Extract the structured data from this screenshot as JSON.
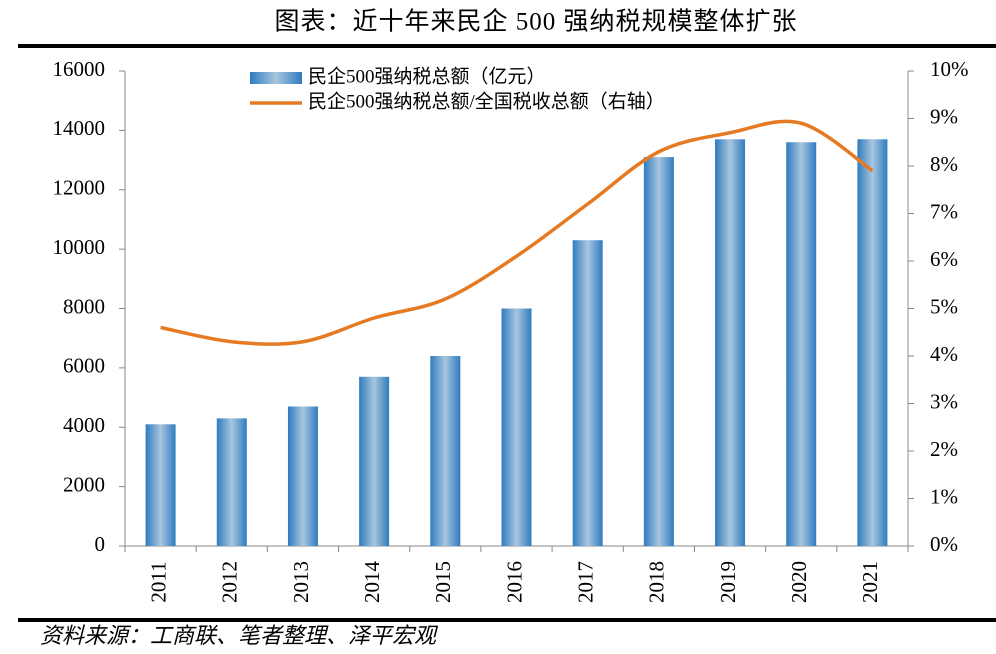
{
  "chart_data": {
    "type": "bar_line",
    "title": "图表：近十年来民企 500 强纳税规模整体扩张",
    "source": "资料来源：工商联、笔者整理、泽平宏观",
    "categories": [
      "2011",
      "2012",
      "2013",
      "2014",
      "2015",
      "2016",
      "2017",
      "2018",
      "2019",
      "2020",
      "2021"
    ],
    "series": [
      {
        "name": "民企500强纳税总额（亿元）",
        "type": "bar",
        "color": "#2f7bbf",
        "values": [
          4100,
          4300,
          4700,
          5700,
          6400,
          8000,
          10300,
          13100,
          13700,
          13600,
          13700
        ]
      },
      {
        "name": "民企500强纳税总额/全国税收总额（右轴）",
        "type": "line",
        "axis": "y2",
        "color": "#e57a22",
        "values": [
          4.6,
          4.3,
          4.3,
          4.8,
          5.2,
          6.1,
          7.2,
          8.3,
          8.7,
          8.9,
          7.9
        ]
      }
    ],
    "ylim": [
      0,
      16000
    ],
    "yticks": [
      0,
      2000,
      4000,
      6000,
      8000,
      10000,
      12000,
      14000,
      16000
    ],
    "y2lim": [
      0,
      10
    ],
    "y2ticks": [
      {
        "value": 0,
        "label": "0%"
      },
      {
        "value": 1,
        "label": "1%"
      },
      {
        "value": 2,
        "label": "2%"
      },
      {
        "value": 3,
        "label": "3%"
      },
      {
        "value": 4,
        "label": "4%"
      },
      {
        "value": 5,
        "label": "5%"
      },
      {
        "value": 6,
        "label": "6%"
      },
      {
        "value": 7,
        "label": "7%"
      },
      {
        "value": 8,
        "label": "8%"
      },
      {
        "value": 9,
        "label": "9%"
      },
      {
        "value": 10,
        "label": "10%"
      }
    ],
    "grid": false
  }
}
